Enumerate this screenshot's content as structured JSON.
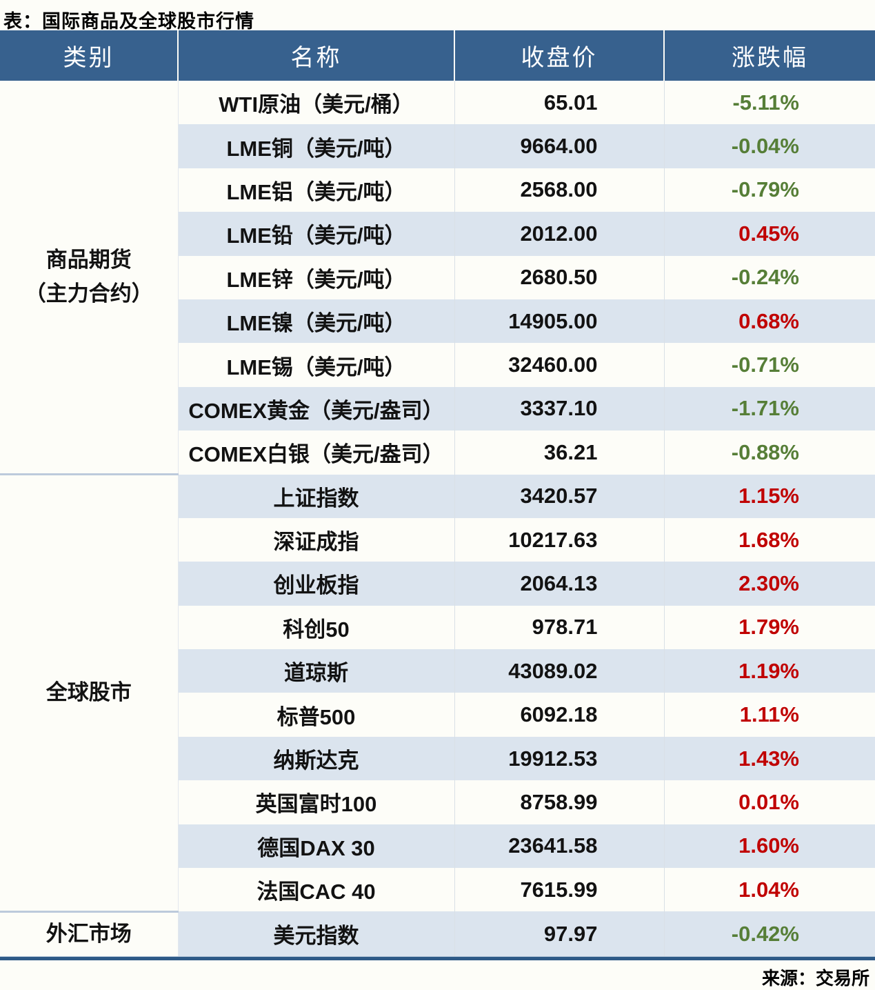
{
  "colors": {
    "header_bg": "#37618e",
    "header_text": "#ffffff",
    "stripe_bg": "#dbe4ee",
    "row_bg": "#fdfdf8",
    "positive_change": "#c00000",
    "negative_change": "#567e37",
    "section_divider": "#bccadb",
    "bottom_border": "#2e5a87",
    "body_text": "#121212"
  },
  "chart_data": {
    "type": "table",
    "title": "表：国际商品及全球股市行情",
    "source": "来源：交易所",
    "columns": [
      "类别",
      "名称",
      "收盘价",
      "涨跌幅"
    ],
    "sections": [
      {
        "category_lines": [
          "商品期货",
          "（主力合约）"
        ],
        "rows": [
          {
            "name": "WTI原油（美元/桶）",
            "close": "65.01",
            "change": "-5.11%"
          },
          {
            "name": "LME铜（美元/吨）",
            "close": "9664.00",
            "change": "-0.04%"
          },
          {
            "name": "LME铝（美元/吨）",
            "close": "2568.00",
            "change": "-0.79%"
          },
          {
            "name": "LME铅（美元/吨）",
            "close": "2012.00",
            "change": "0.45%"
          },
          {
            "name": "LME锌（美元/吨）",
            "close": "2680.50",
            "change": "-0.24%"
          },
          {
            "name": "LME镍（美元/吨）",
            "close": "14905.00",
            "change": "0.68%"
          },
          {
            "name": "LME锡（美元/吨）",
            "close": "32460.00",
            "change": "-0.71%"
          },
          {
            "name": "COMEX黄金（美元/盎司）",
            "close": "3337.10",
            "change": "-1.71%"
          },
          {
            "name": "COMEX白银（美元/盎司）",
            "close": "36.21",
            "change": "-0.88%"
          }
        ]
      },
      {
        "category_lines": [
          "全球股市"
        ],
        "rows": [
          {
            "name": "上证指数",
            "close": "3420.57",
            "change": "1.15%"
          },
          {
            "name": "深证成指",
            "close": "10217.63",
            "change": "1.68%"
          },
          {
            "name": "创业板指",
            "close": "2064.13",
            "change": "2.30%"
          },
          {
            "name": "科创50",
            "close": "978.71",
            "change": "1.79%"
          },
          {
            "name": "道琼斯",
            "close": "43089.02",
            "change": "1.19%"
          },
          {
            "name": "标普500",
            "close": "6092.18",
            "change": "1.11%"
          },
          {
            "name": "纳斯达克",
            "close": "19912.53",
            "change": "1.43%"
          },
          {
            "name": "英国富时100",
            "close": "8758.99",
            "change": "0.01%"
          },
          {
            "name": "德国DAX 30",
            "close": "23641.58",
            "change": "1.60%"
          },
          {
            "name": "法国CAC 40",
            "close": "7615.99",
            "change": "1.04%"
          }
        ]
      },
      {
        "category_lines": [
          "外汇市场"
        ],
        "rows": [
          {
            "name": "美元指数",
            "close": "97.97",
            "change": "-0.42%"
          }
        ]
      }
    ]
  }
}
